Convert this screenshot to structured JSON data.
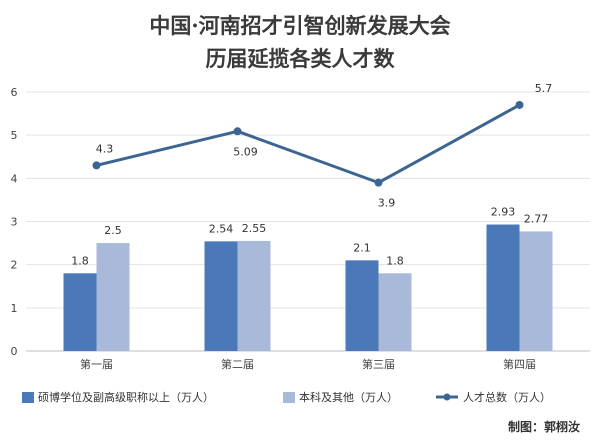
{
  "chart_data": {
    "type": "bar",
    "title": "中国·河南招才引智创新发展大会",
    "subtitle": "历届延揽各类人才数",
    "categories": [
      "第一届",
      "第二届",
      "第三届",
      "第四届"
    ],
    "ylim": [
      0,
      6
    ],
    "yticks": [
      0,
      1,
      2,
      3,
      4,
      5,
      6
    ],
    "grid": true,
    "legend_position": "bottom",
    "series": [
      {
        "name": "硕博学位及副高级职称以上（万人）",
        "type": "bar",
        "color": "#4a78b8",
        "values": [
          1.8,
          2.54,
          2.1,
          2.93
        ],
        "labels": [
          "1.8",
          "2.54",
          "2.1",
          "2.93"
        ]
      },
      {
        "name": "本科及其他（万人）",
        "type": "bar",
        "color": "#a9b9d9",
        "values": [
          2.5,
          2.55,
          1.8,
          2.77
        ],
        "labels": [
          "2.5",
          "2.55",
          "1.8",
          "2.77"
        ]
      },
      {
        "name": "人才总数（万人）",
        "type": "line",
        "color": "#3d6592",
        "values": [
          4.3,
          5.09,
          3.9,
          5.7
        ],
        "labels": [
          "4.3",
          "5.09",
          "3.9",
          "5.7"
        ]
      }
    ]
  },
  "credit": "制图：郭栩汝"
}
